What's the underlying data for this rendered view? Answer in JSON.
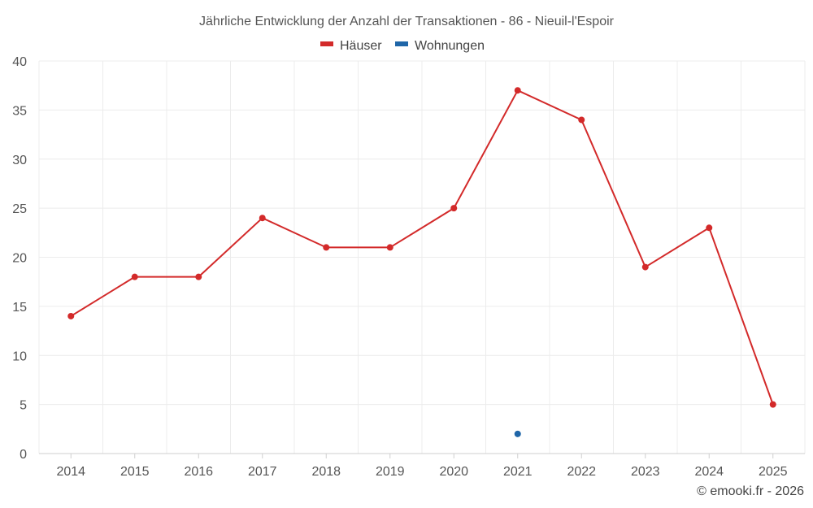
{
  "chart_data": {
    "type": "line",
    "title": "Jährliche Entwicklung der Anzahl der Transaktionen - 86 - Nieuil-l'Espoir",
    "categories": [
      "2014",
      "2015",
      "2016",
      "2017",
      "2018",
      "2019",
      "2020",
      "2021",
      "2022",
      "2023",
      "2024",
      "2025"
    ],
    "series": [
      {
        "name": "Häuser",
        "color": "#d32a2a",
        "values": [
          14,
          18,
          18,
          24,
          21,
          21,
          25,
          37,
          34,
          19,
          23,
          5
        ]
      },
      {
        "name": "Wohnungen",
        "color": "#1f66a8",
        "values": [
          null,
          null,
          null,
          null,
          null,
          null,
          null,
          2,
          null,
          null,
          null,
          null
        ]
      }
    ],
    "ylim": [
      0,
      40
    ],
    "yticks": [
      0,
      5,
      10,
      15,
      20,
      25,
      30,
      35,
      40
    ],
    "grid": true,
    "legend_position": "top-center"
  },
  "credit": "© emooki.fr - 2026"
}
